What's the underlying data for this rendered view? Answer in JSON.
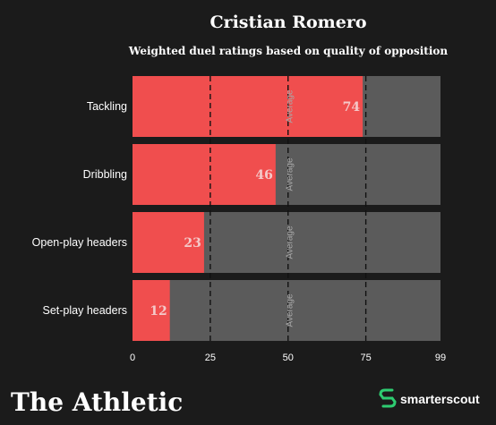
{
  "header": {
    "title": "Cristian Romero",
    "subtitle": "Weighted duel ratings based on quality of opposition"
  },
  "chart_data": {
    "type": "bar",
    "orientation": "horizontal",
    "title": "Cristian Romero",
    "subtitle": "Weighted duel ratings based on quality of opposition",
    "categories": [
      "Tackling",
      "Dribbling",
      "Open-play headers",
      "Set-play headers"
    ],
    "values": [
      74,
      46,
      23,
      12
    ],
    "xlim": [
      0,
      99
    ],
    "xticks": [
      0,
      25,
      50,
      75,
      99
    ],
    "average_value": 50,
    "average_label": "Average",
    "reference_lines": [
      25,
      50,
      75
    ],
    "colors": {
      "bar": "#f04e4e",
      "track": "#5b5b5b",
      "background": "#1b1b1b",
      "value_text": "#f4c9c9"
    }
  },
  "branding": {
    "left_logo": "The Athletic",
    "right_logo": "smarterscout",
    "right_icon": "smarterscout-logo-icon",
    "logo_color": "#2ecc71"
  }
}
